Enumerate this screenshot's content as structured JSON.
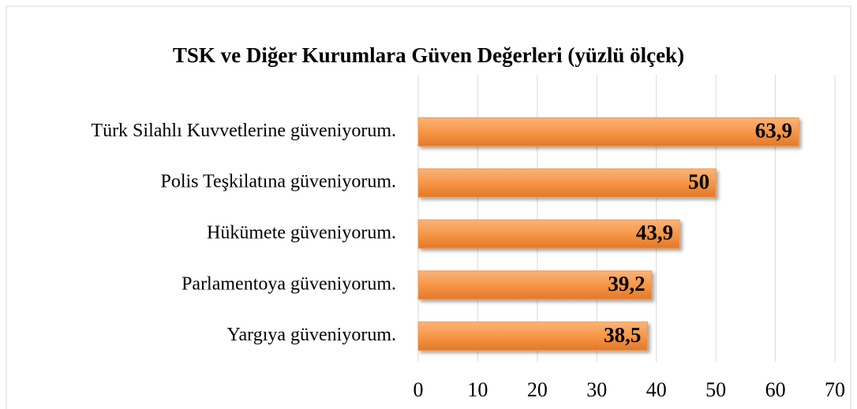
{
  "chart_data": {
    "type": "bar",
    "orientation": "horizontal",
    "title": "TSK ve Diğer Kurumlara Güven Değerleri (yüzlü ölçek)",
    "categories": [
      "Türk Silahlı Kuvvetlerine güveniyorum.",
      "Polis Teşkilatına güveniyorum.",
      "Hükümete güveniyorum.",
      "Parlamentoya güveniyorum.",
      "Yargıya güveniyorum."
    ],
    "values": [
      63.9,
      50,
      43.9,
      39.2,
      38.5
    ],
    "value_labels": [
      "63,9",
      "50",
      "43,9",
      "39,2",
      "38,5"
    ],
    "color": "#f79646",
    "xlim": [
      0,
      70
    ],
    "xticks": [
      0,
      10,
      20,
      30,
      40,
      50,
      60,
      70
    ],
    "grid": true
  }
}
